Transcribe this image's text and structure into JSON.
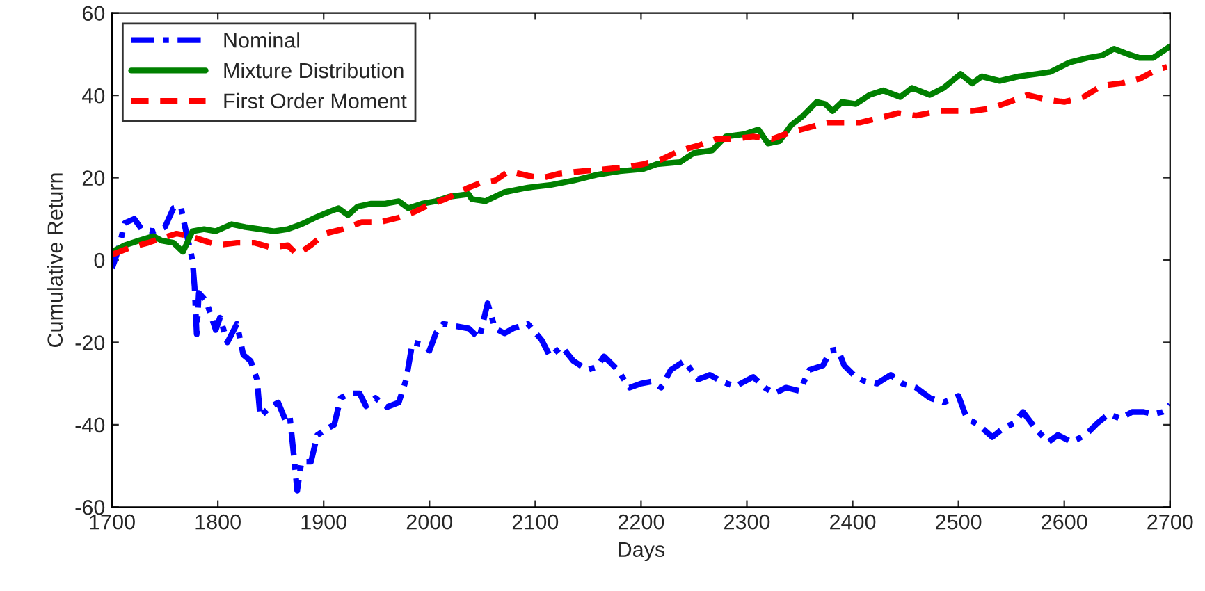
{
  "chart_data": {
    "type": "line",
    "xlabel": "Days",
    "ylabel": "Cumulative Return",
    "xlim": [
      1700,
      2700
    ],
    "xticks": [
      1700,
      1800,
      1900,
      2000,
      2100,
      2200,
      2300,
      2400,
      2500,
      2600,
      2700
    ],
    "ylim": [
      -60,
      60
    ],
    "yticks": [
      -60,
      -40,
      -20,
      0,
      20,
      40,
      60
    ],
    "grid": false,
    "legend": "top left",
    "series": [
      {
        "name": "Nominal",
        "color": "#0000ff",
        "line_style": "dashdot",
        "x": [
          1700,
          1706,
          1712,
          1721,
          1728,
          1739,
          1750,
          1758,
          1765,
          1769,
          1776,
          1778,
          1780,
          1782,
          1789,
          1798,
          1802,
          1809,
          1818,
          1824,
          1831,
          1837,
          1840,
          1848,
          1857,
          1864,
          1868,
          1872,
          1875,
          1879,
          1888,
          1894,
          1903,
          1910,
          1916,
          1925,
          1934,
          1940,
          1949,
          1960,
          1971,
          1978,
          1984,
          1993,
          2000,
          2006,
          2013,
          2024,
          2037,
          2047,
          2055,
          2062,
          2071,
          2079,
          2093,
          2106,
          2114,
          2125,
          2136,
          2149,
          2158,
          2165,
          2178,
          2189,
          2200,
          2210,
          2219,
          2228,
          2241,
          2254,
          2265,
          2276,
          2289,
          2306,
          2317,
          2326,
          2337,
          2350,
          2359,
          2372,
          2379,
          2386,
          2392,
          2403,
          2412,
          2423,
          2436,
          2447,
          2460,
          2473,
          2486,
          2500,
          2508,
          2519,
          2532,
          2543,
          2552,
          2561,
          2574,
          2585,
          2594,
          2607,
          2620,
          2631,
          2642,
          2653,
          2664,
          2675,
          2684,
          2693,
          2700
        ],
        "values": [
          -2,
          2.5,
          9,
          10,
          7.5,
          7,
          8,
          12.6,
          13,
          8,
          0,
          -6.5,
          -18,
          -8,
          -10,
          -17,
          -14,
          -20,
          -15.5,
          -23,
          -24.5,
          -29,
          -38,
          -36,
          -34.6,
          -39,
          -38,
          -48,
          -56,
          -49,
          -49,
          -42.5,
          -41,
          -40,
          -33.5,
          -32.4,
          -32.4,
          -35.5,
          -33.5,
          -35.7,
          -34.6,
          -29,
          -20,
          -20.5,
          -22,
          -17.8,
          -15.5,
          -16,
          -16.6,
          -19,
          -10.5,
          -16.6,
          -17.8,
          -16.6,
          -15.5,
          -19.4,
          -23.4,
          -21,
          -24.5,
          -26.7,
          -26,
          -23.4,
          -26.7,
          -31,
          -30,
          -29.5,
          -31,
          -26.7,
          -24.5,
          -29,
          -27.9,
          -29.5,
          -30.7,
          -28.4,
          -31,
          -32.4,
          -31,
          -31.8,
          -26.7,
          -25.6,
          -22,
          -21.7,
          -25.6,
          -28.4,
          -29.5,
          -30,
          -27.9,
          -30,
          -31,
          -33.5,
          -34.6,
          -33,
          -38.5,
          -40,
          -43,
          -40.7,
          -39.7,
          -36.9,
          -41.3,
          -44.2,
          -42.5,
          -44.2,
          -42.5,
          -39.7,
          -37.4,
          -38.5,
          -36.9,
          -36.9,
          -37.4,
          -36.9,
          -35.2
        ]
      },
      {
        "name": "Mixture Distribution",
        "color": "#008000",
        "line_style": "solid",
        "x": [
          1700,
          1712,
          1725,
          1739,
          1747,
          1758,
          1767,
          1776,
          1787,
          1798,
          1813,
          1826,
          1840,
          1853,
          1866,
          1879,
          1892,
          1903,
          1914,
          1923,
          1932,
          1945,
          1958,
          1971,
          1980,
          1993,
          2006,
          2019,
          2037,
          2040,
          2053,
          2071,
          2093,
          2114,
          2136,
          2158,
          2180,
          2202,
          2215,
          2237,
          2250,
          2267,
          2280,
          2298,
          2311,
          2320,
          2331,
          2342,
          2353,
          2366,
          2374,
          2381,
          2390,
          2403,
          2416,
          2429,
          2445,
          2456,
          2473,
          2486,
          2502,
          2513,
          2522,
          2539,
          2557,
          2574,
          2587,
          2605,
          2622,
          2636,
          2647,
          2658,
          2671,
          2684,
          2700
        ],
        "values": [
          2,
          3.6,
          4.7,
          5.8,
          4.7,
          4.2,
          2,
          7,
          7.5,
          7,
          8.7,
          8,
          7.5,
          7,
          7.5,
          8.7,
          10.3,
          11.5,
          12.6,
          10.9,
          13,
          13.7,
          13.7,
          14.3,
          12.6,
          13.7,
          14.3,
          15.4,
          16,
          14.8,
          14.3,
          16.5,
          17.6,
          18.2,
          19.3,
          20.7,
          21.6,
          22.1,
          23.3,
          23.8,
          26,
          26.6,
          30,
          30.6,
          31.7,
          28.3,
          28.9,
          32.8,
          35,
          38.4,
          37.9,
          36.2,
          38.4,
          37.9,
          40.1,
          41.2,
          39.6,
          41.8,
          40.1,
          41.8,
          45.2,
          42.9,
          44.6,
          43.5,
          44.6,
          45.2,
          45.7,
          48,
          49.1,
          49.7,
          51.3,
          50.2,
          49.1,
          49.1,
          51.9
        ]
      },
      {
        "name": "First Order Moment",
        "color": "#ff0000",
        "line_style": "dashed",
        "x": [
          1700,
          1717,
          1734,
          1747,
          1761,
          1774,
          1787,
          1800,
          1818,
          1835,
          1851,
          1866,
          1875,
          1888,
          1901,
          1918,
          1936,
          1953,
          1971,
          1984,
          1997,
          2015,
          2037,
          2049,
          2062,
          2075,
          2093,
          2106,
          2123,
          2145,
          2167,
          2189,
          2202,
          2219,
          2237,
          2254,
          2271,
          2289,
          2306,
          2324,
          2342,
          2359,
          2376,
          2381,
          2394,
          2407,
          2425,
          2443,
          2460,
          2482,
          2500,
          2513,
          2530,
          2548,
          2565,
          2583,
          2600,
          2618,
          2636,
          2653,
          2671,
          2688,
          2697
        ],
        "values": [
          1.3,
          3,
          4.2,
          5.3,
          6.4,
          5.8,
          4.7,
          3.6,
          4.2,
          4.2,
          3,
          3.6,
          1.3,
          3.6,
          6.4,
          7.5,
          9.2,
          9.2,
          10.3,
          11.5,
          13.1,
          14.8,
          17.6,
          18.8,
          19.3,
          21.6,
          20.5,
          19.9,
          21,
          21.6,
          22.1,
          22.7,
          23.3,
          24.4,
          26.6,
          27.8,
          29.4,
          29.4,
          30,
          29.4,
          31.1,
          32.2,
          33.4,
          33.4,
          33.4,
          33.4,
          34.5,
          35.7,
          35.1,
          36.2,
          36.2,
          36.2,
          36.8,
          38.4,
          40.1,
          39,
          38.4,
          39.6,
          42.4,
          42.9,
          44,
          46.3,
          46.9
        ]
      }
    ]
  }
}
